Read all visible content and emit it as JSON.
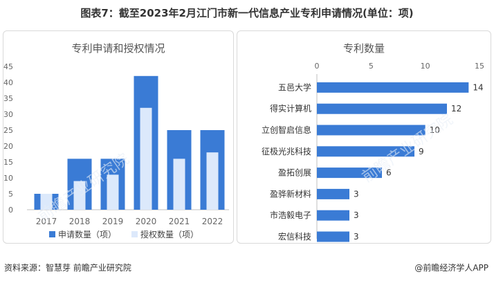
{
  "page": {
    "title": "图表7：截至2023年2月江门市新一代信息产业专利申请情况(单位：项)",
    "source": "资料来源：智慧芽 前瞻产业研究院",
    "brand": "@前瞻经济学人APP",
    "watermark": "前瞻产业研究院"
  },
  "colors": {
    "applications": "#3a7bd5",
    "grants": "#dce9fb",
    "bar": "#3a7bd5",
    "axis": "#666666"
  },
  "chart_data": [
    {
      "type": "bar",
      "title": "专利申请和授权情况",
      "categories": [
        "2017",
        "2018",
        "2019",
        "2020",
        "2021",
        "2022"
      ],
      "series": [
        {
          "name": "申请数量（项）",
          "values": [
            5,
            16,
            16,
            42,
            25,
            25
          ]
        },
        {
          "name": "授权数量（项）",
          "values": [
            5,
            9,
            11,
            32,
            16,
            18
          ]
        }
      ],
      "ylim": [
        0,
        45
      ],
      "yticks": [
        0,
        5,
        10,
        15,
        20,
        25,
        30,
        35,
        40,
        45
      ],
      "legend": "bottom"
    },
    {
      "type": "bar",
      "orientation": "horizontal",
      "title": "专利数量",
      "categories": [
        "五邑大学",
        "得实计算机",
        "立创智启信息",
        "征极光兆科技",
        "盈拓创展",
        "盈骅新材料",
        "市浩毅电子",
        "宏信科技"
      ],
      "values": [
        14,
        12,
        10,
        9,
        6,
        3,
        3,
        3
      ],
      "xlim": [
        0,
        15
      ],
      "xticks": [
        0,
        5,
        10,
        15
      ],
      "axis_position": "top"
    }
  ]
}
